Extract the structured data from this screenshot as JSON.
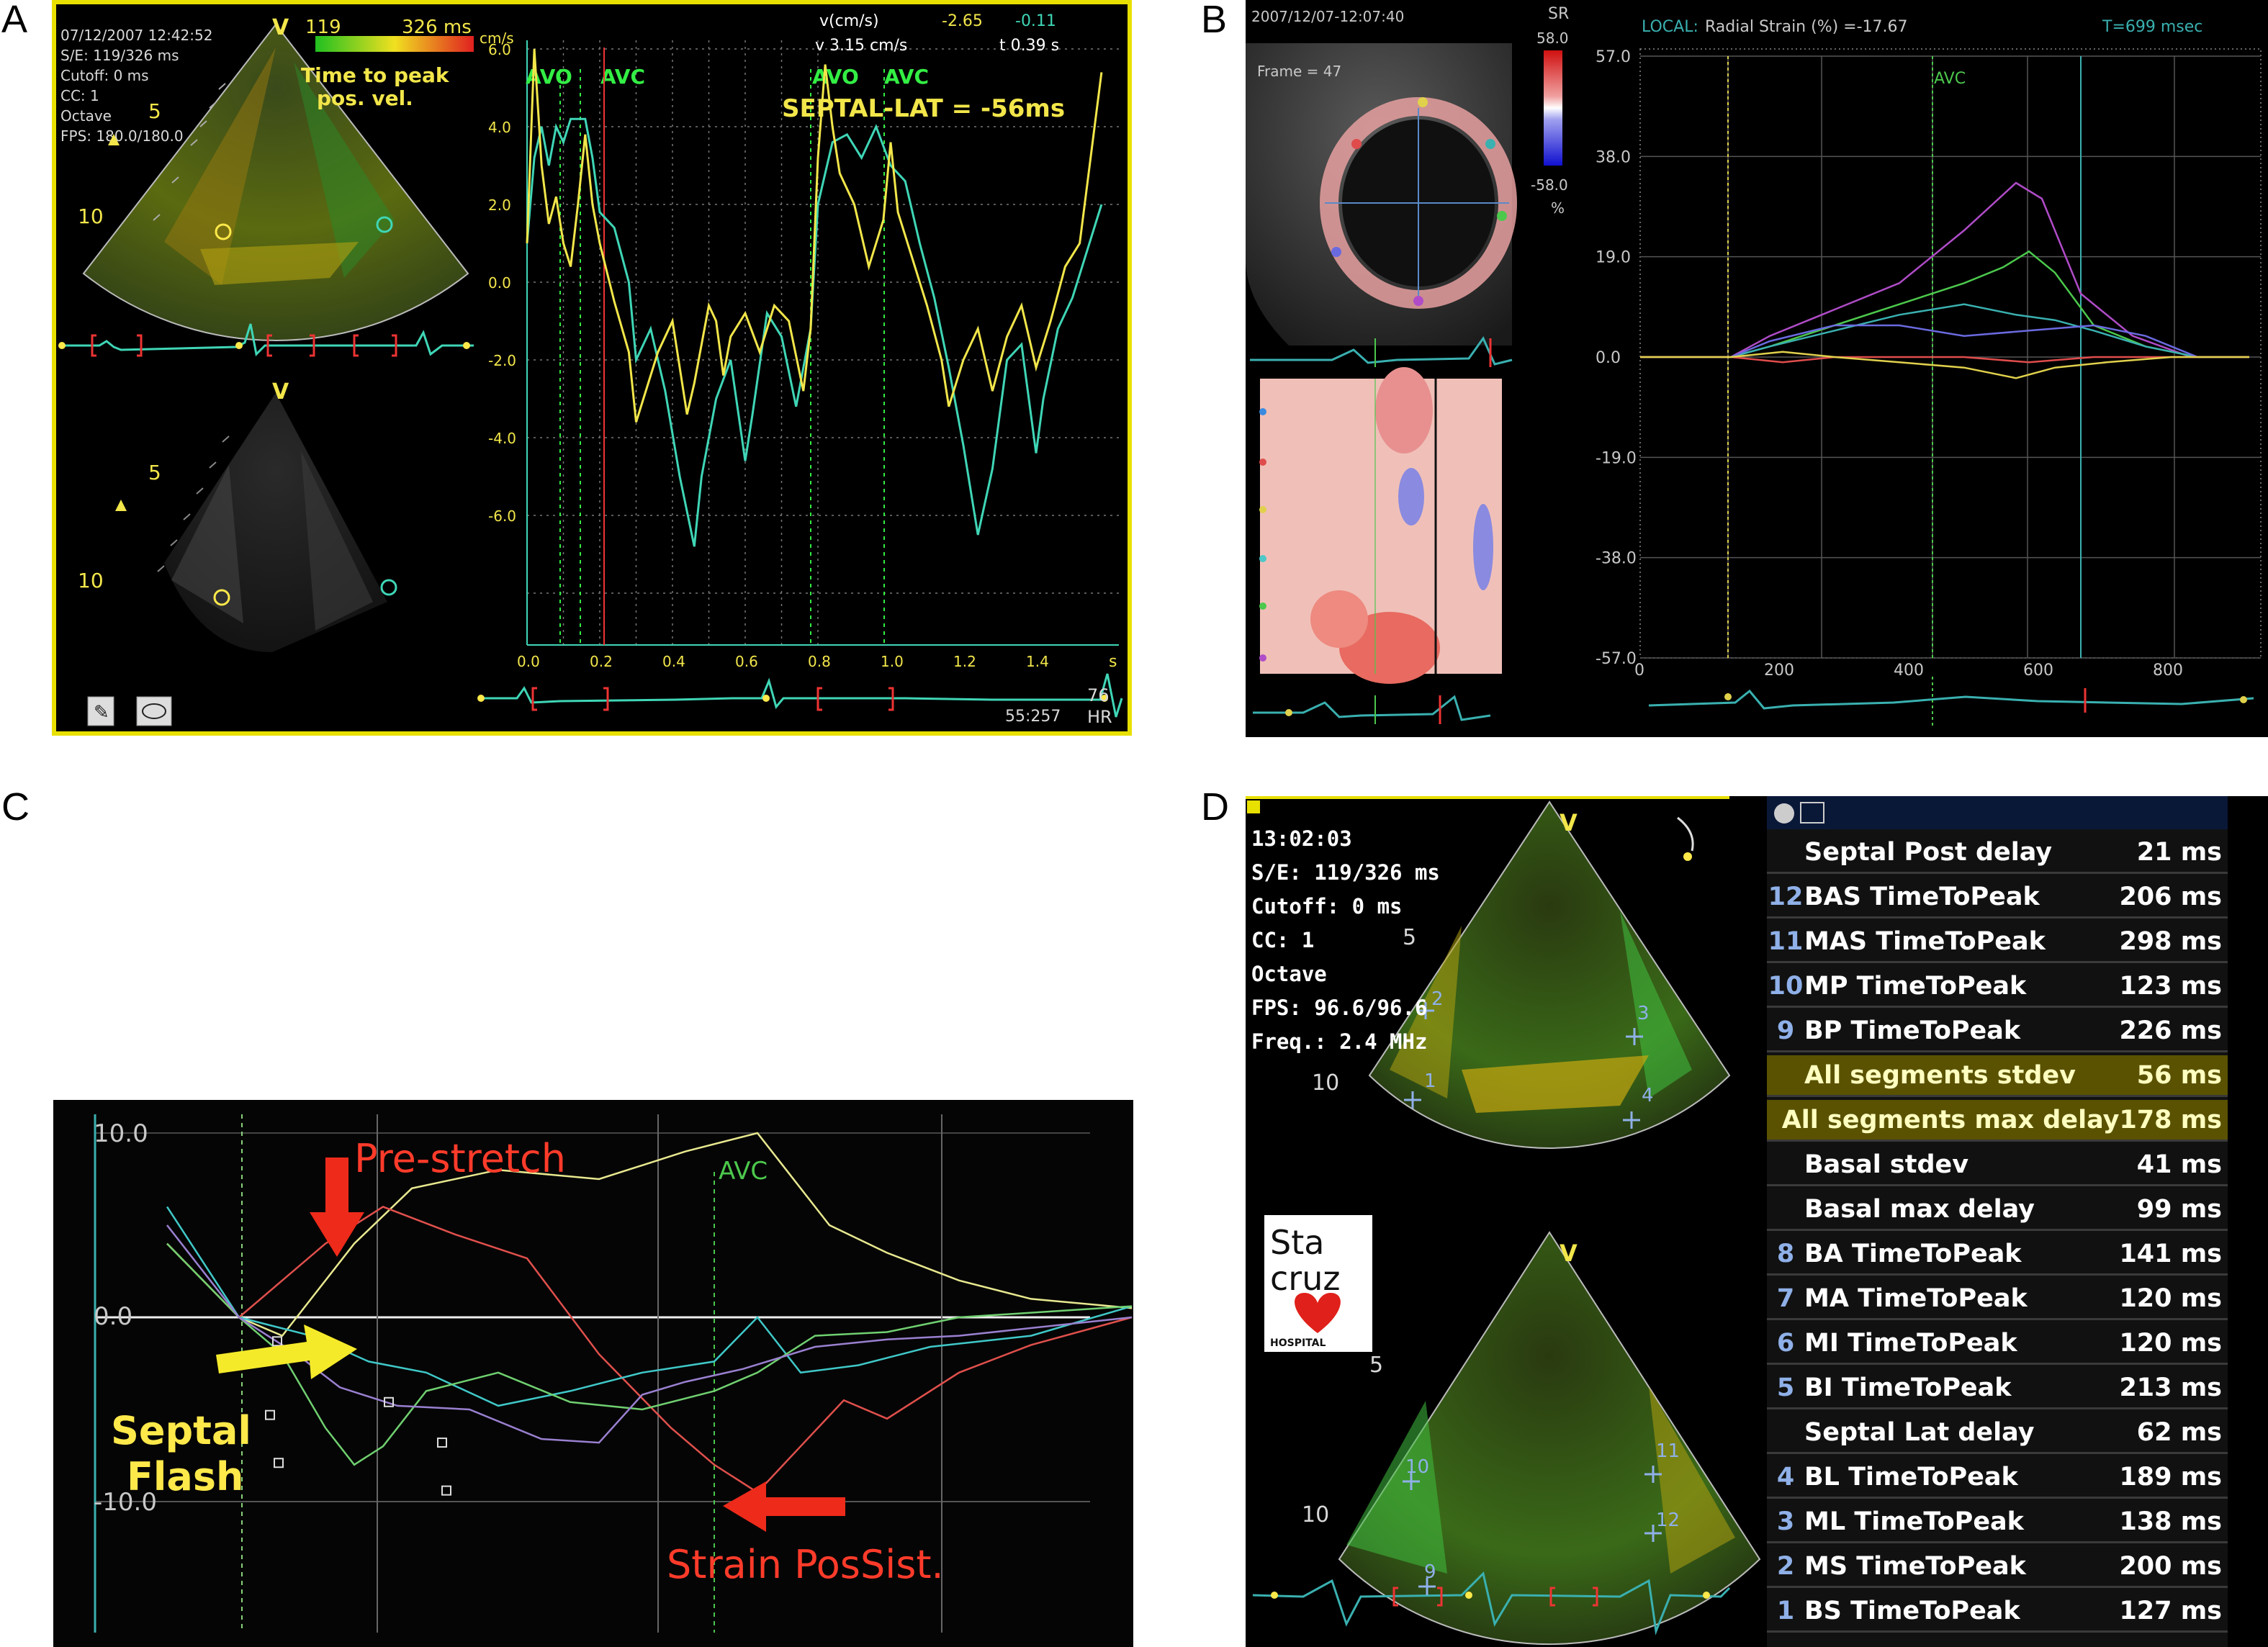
{
  "panel_labels": {
    "a": "A",
    "b": "B",
    "c": "C",
    "d": "D"
  },
  "panel_a": {
    "timestamp": "07/12/2007 12:42:52",
    "info_lines": [
      "S/E: 119/326 ms",
      "Cutoff: 0 ms",
      "CC: 1",
      "Octave",
      "FPS: 180.0/180.0"
    ],
    "color_bar_left": "119",
    "color_bar_right": "326 ms",
    "legend": "Time to peak pos. vel.",
    "legend_line1": "Time to peak",
    "legend_line2": "pos. vel.",
    "probe_marker": "V",
    "depth_5": "5",
    "depth_10": "10",
    "unit_label": "cm/s",
    "readout_title": "v(cm/s)",
    "readout_yellow": "-2.65",
    "readout_cyan": "-0.11",
    "readout_v": "v 3.15 cm/s",
    "readout_t": "t 0.39 s",
    "avo_label": "AVO",
    "avc_label": "AVC",
    "annotation": "SEPTAL-LAT = -56ms",
    "y_ticks": [
      "6.0",
      "4.0",
      "2.0",
      "0.0",
      "-2.0",
      "-4.0",
      "-6.0"
    ],
    "x_ticks": [
      "0.0",
      "0.2",
      "0.4",
      "0.6",
      "0.8",
      "1.0",
      "1.2",
      "1.4"
    ],
    "x_unit": "s",
    "hr_value": "76",
    "hr_label": "HR",
    "clock": "55:257",
    "colors": {
      "yellow": "#f2e64a",
      "cyan": "#3fd6b6",
      "green_marker": "#33ee44",
      "red_marker": "#ee3333",
      "frame": "#e8e000"
    }
  },
  "panel_b": {
    "timestamp": "2007/12/07-12:07:40",
    "frame": "Frame = 47",
    "sr_label": "SR",
    "scale_top": "58.0",
    "scale_bottom": "-58.0",
    "percent": "%",
    "local_label": "LOCAL:",
    "local_text": "Radial Strain (%) =-17.67",
    "time_text": "T=699 msec",
    "avc_label": "AVC",
    "y_ticks": [
      "57.0",
      "38.0",
      "19.0",
      "0.0",
      "-19.0",
      "-38.0",
      "-57.0"
    ],
    "x_ticks": [
      "0",
      "200",
      "400",
      "600",
      "800"
    ],
    "colors": {
      "purple": "#b04cc8",
      "green": "#4cc84c",
      "cyan": "#3ab0b0",
      "blue": "#6a6ae0",
      "red": "#e04c4c",
      "yellow": "#e0d04c"
    }
  },
  "panel_c": {
    "y_top": "10.0",
    "y_zero": "0.0",
    "y_bottom": "-10.0",
    "avc_label": "AVC",
    "pre_stretch": "Pre-stretch",
    "septal_flash_1": "Septal",
    "septal_flash_2": "Flash",
    "strain_possist": "Strain PosSist.",
    "colors": {
      "red_text": "#ff3b2a",
      "yellow_text": "#ffe94a",
      "arrow_red": "#ee2a1a",
      "arrow_yellow": "#f5ea2a"
    }
  },
  "panel_d": {
    "info_lines": [
      "13:02:03",
      "S/E: 119/326 ms",
      "Cutoff: 0 ms",
      "CC: 1",
      "Octave",
      "FPS: 96.6/96.6",
      "Freq.: 2.4 MHz"
    ],
    "probe_marker": "V",
    "depth_5": "5",
    "depth_10": "10",
    "logo_line1": "Sta",
    "logo_line2": "cruz",
    "logo_line3": "HOSPITAL",
    "markers_top": [
      "1",
      "2",
      "3",
      "4"
    ],
    "markers_bottom": [
      "9",
      "10",
      "11",
      "12"
    ],
    "table_header_icon": "tabs",
    "table": [
      {
        "num": "",
        "label": "Septal Post delay",
        "value": "21 ms",
        "highlight": false
      },
      {
        "num": "12",
        "label": "BAS TimeToPeak",
        "value": "206 ms",
        "highlight": false
      },
      {
        "num": "11",
        "label": "MAS TimeToPeak",
        "value": "298 ms",
        "highlight": false
      },
      {
        "num": "10",
        "label": "MP TimeToPeak",
        "value": "123 ms",
        "highlight": false
      },
      {
        "num": "9",
        "label": "BP TimeToPeak",
        "value": "226 ms",
        "highlight": false
      },
      {
        "num": "",
        "label": "All segments stdev",
        "value": "56 ms",
        "highlight": true
      },
      {
        "num": "",
        "label": "All segments max delay",
        "value": "178 ms",
        "highlight": true
      },
      {
        "num": "",
        "label": "Basal stdev",
        "value": "41 ms",
        "highlight": false
      },
      {
        "num": "",
        "label": "Basal max delay",
        "value": "99 ms",
        "highlight": false
      },
      {
        "num": "8",
        "label": "BA TimeToPeak",
        "value": "141 ms",
        "highlight": false
      },
      {
        "num": "7",
        "label": "MA TimeToPeak",
        "value": "120 ms",
        "highlight": false
      },
      {
        "num": "6",
        "label": "MI TimeToPeak",
        "value": "120 ms",
        "highlight": false
      },
      {
        "num": "5",
        "label": "BI TimeToPeak",
        "value": "213 ms",
        "highlight": false
      },
      {
        "num": "",
        "label": "Septal Lat delay",
        "value": "62 ms",
        "highlight": false
      },
      {
        "num": "4",
        "label": "BL TimeToPeak",
        "value": "189 ms",
        "highlight": false
      },
      {
        "num": "3",
        "label": "ML TimeToPeak",
        "value": "138 ms",
        "highlight": false
      },
      {
        "num": "2",
        "label": "MS TimeToPeak",
        "value": "200 ms",
        "highlight": false
      },
      {
        "num": "1",
        "label": "BS TimeToPeak",
        "value": "127 ms",
        "highlight": false
      }
    ],
    "colors": {
      "highlight": "#5a5200",
      "logo_heart": "#e0201a"
    }
  }
}
